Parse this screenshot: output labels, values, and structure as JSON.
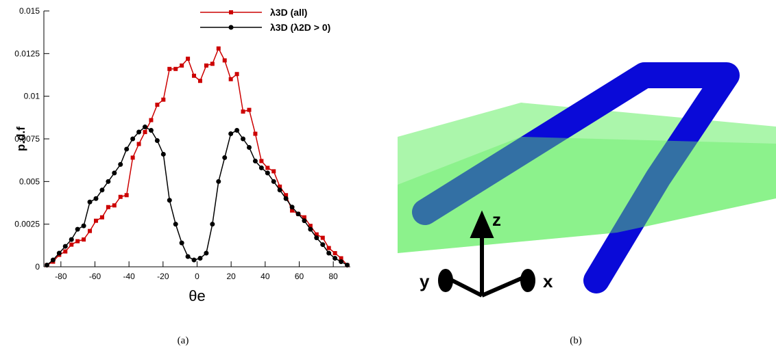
{
  "chart_data": {
    "type": "line",
    "x_label": "θe",
    "y_label": "p.d.f",
    "x": [
      -88.2,
      -84.6,
      -81,
      -77.4,
      -73.8,
      -70.2,
      -66.6,
      -63,
      -59.4,
      -55.8,
      -52.2,
      -48.6,
      -45,
      -41.4,
      -37.8,
      -34.2,
      -30.6,
      -27,
      -23.4,
      -19.8,
      -16.2,
      -12.6,
      -9,
      -5.4,
      -1.8,
      1.8,
      5.4,
      9,
      12.6,
      16.2,
      19.8,
      23.4,
      27,
      30.6,
      34.2,
      37.8,
      41.4,
      45,
      48.6,
      52.2,
      55.8,
      59.4,
      63,
      66.6,
      70.2,
      73.8,
      77.4,
      81,
      84.6,
      88.2
    ],
    "series": [
      {
        "name": "λ3D (all)",
        "color": "#cc0000",
        "marker": "square",
        "values": [
          0.0001,
          0.0003,
          0.0007,
          0.0009,
          0.0013,
          0.0015,
          0.0016,
          0.0021,
          0.0027,
          0.0029,
          0.0035,
          0.0036,
          0.0041,
          0.0042,
          0.0064,
          0.0072,
          0.0079,
          0.0086,
          0.0095,
          0.0098,
          0.0116,
          0.0116,
          0.0118,
          0.0122,
          0.0112,
          0.0109,
          0.0118,
          0.0119,
          0.0128,
          0.0121,
          0.011,
          0.0113,
          0.0091,
          0.0092,
          0.0078,
          0.0062,
          0.0058,
          0.0056,
          0.0047,
          0.0042,
          0.0033,
          0.0031,
          0.0029,
          0.0024,
          0.0019,
          0.0017,
          0.0011,
          0.0008,
          0.0005,
          0.0001
        ]
      },
      {
        "name": "λ3D (λ2D > 0)",
        "color": "#000000",
        "marker": "circle",
        "values": [
          0.0001,
          0.0004,
          0.0008,
          0.0012,
          0.0016,
          0.0022,
          0.0024,
          0.0038,
          0.004,
          0.0045,
          0.005,
          0.0055,
          0.006,
          0.0069,
          0.0075,
          0.0079,
          0.0082,
          0.008,
          0.0074,
          0.0066,
          0.0039,
          0.0025,
          0.0014,
          0.0006,
          0.0004,
          0.0005,
          0.0008,
          0.0025,
          0.005,
          0.0064,
          0.0078,
          0.008,
          0.0075,
          0.007,
          0.0062,
          0.0058,
          0.0055,
          0.005,
          0.0045,
          0.004,
          0.0035,
          0.0031,
          0.0027,
          0.0022,
          0.0017,
          0.0013,
          0.0008,
          0.0005,
          0.0003,
          0.0001
        ]
      }
    ],
    "xlim": [
      -90,
      90
    ],
    "ylim": [
      0,
      0.015
    ],
    "xticks": [
      -80,
      -60,
      -40,
      -20,
      0,
      20,
      40,
      60,
      80
    ],
    "yticks": [
      0,
      0.0025,
      0.005,
      0.0075,
      0.01,
      0.0125,
      0.015
    ],
    "legend": "upper right"
  },
  "captions": [
    "(a)",
    "(b)"
  ],
  "illustration": {
    "axis_labels": {
      "x": "x",
      "y": "y",
      "z": "z"
    }
  }
}
